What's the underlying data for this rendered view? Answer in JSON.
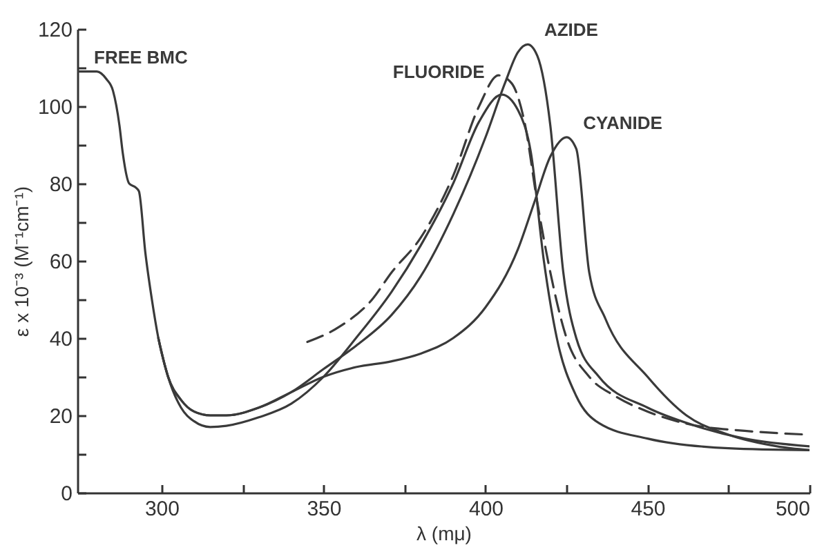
{
  "chart_data": {
    "type": "line",
    "xlabel": "λ (mμ)",
    "ylabel": "ε x 10⁻³ (M⁻¹cm⁻¹)",
    "xlim": [
      274,
      500
    ],
    "ylim": [
      0,
      120
    ],
    "xticks": [
      300,
      {
        "value": 325,
        "label": null
      },
      350,
      {
        "value": 375,
        "label": null
      },
      400,
      {
        "value": 425,
        "label": null
      },
      450,
      {
        "value": 475,
        "label": null
      },
      500
    ],
    "yticks": [
      0,
      {
        "value": 10,
        "label": null
      },
      20,
      {
        "value": 30,
        "label": null
      },
      40,
      {
        "value": 50,
        "label": null
      },
      60,
      {
        "value": 70,
        "label": null
      },
      80,
      {
        "value": 90,
        "label": null
      },
      100,
      {
        "value": 110,
        "label": null
      },
      120
    ],
    "series": [
      {
        "name": "FREE BMC",
        "color": "#3a3a3a",
        "x": [
          274,
          276,
          280,
          283,
          285,
          287,
          288,
          290,
          292,
          293,
          295,
          297,
          299,
          302,
          306,
          310,
          315,
          320,
          330,
          340,
          350,
          360,
          371,
          380,
          390,
          398,
          405,
          410,
          414,
          418,
          422,
          428,
          435,
          450,
          475,
          500
        ],
        "values": [
          109,
          109,
          109,
          107,
          104,
          95,
          88,
          80,
          79,
          78,
          62,
          50,
          40,
          30,
          22,
          18.5,
          17,
          17.3,
          19.5,
          23,
          30,
          40,
          52,
          64,
          80,
          96,
          103,
          99,
          88,
          60,
          40,
          25,
          18,
          14,
          11.5,
          11
        ]
      },
      {
        "name": "AZIDE",
        "color": "#3a3a3a",
        "x": [
          299,
          302,
          306,
          310,
          315,
          320,
          330,
          340,
          350,
          360,
          371,
          380,
          390,
          400,
          406,
          410,
          413,
          416,
          420,
          424,
          428,
          435,
          450,
          464,
          480,
          500
        ],
        "values": [
          40,
          30,
          24,
          21,
          20,
          20,
          22,
          26,
          32,
          38,
          46,
          56,
          72,
          92,
          106,
          114,
          116,
          113,
          95,
          57,
          40,
          30,
          22,
          17.5,
          14,
          12
        ]
      },
      {
        "name": "FLUORIDE",
        "color": "#3a3a3a",
        "line_style": "dashed",
        "x": [
          345,
          355,
          365,
          371,
          380,
          390,
          398,
          404,
          408,
          412,
          416,
          420,
          425,
          432,
          440,
          450,
          464,
          480,
          500
        ],
        "values": [
          39,
          43,
          50,
          57,
          66,
          82,
          100,
          108,
          106,
          96,
          75,
          57,
          40,
          30,
          25,
          21,
          17.5,
          16,
          15
        ]
      },
      {
        "name": "CYANIDE",
        "color": "#3a3a3a",
        "x": [
          299,
          302,
          306,
          310,
          315,
          320,
          330,
          340,
          350,
          360,
          371,
          380,
          390,
          400,
          410,
          415,
          420,
          425,
          428,
          432,
          437,
          450,
          462,
          475,
          490,
          500
        ],
        "values": [
          40,
          30,
          24,
          21,
          20,
          20,
          22,
          26,
          30,
          32.5,
          34,
          36,
          40,
          48,
          63,
          75,
          87,
          92,
          89,
          57,
          45,
          30,
          20,
          15,
          12,
          11
        ]
      }
    ]
  }
}
